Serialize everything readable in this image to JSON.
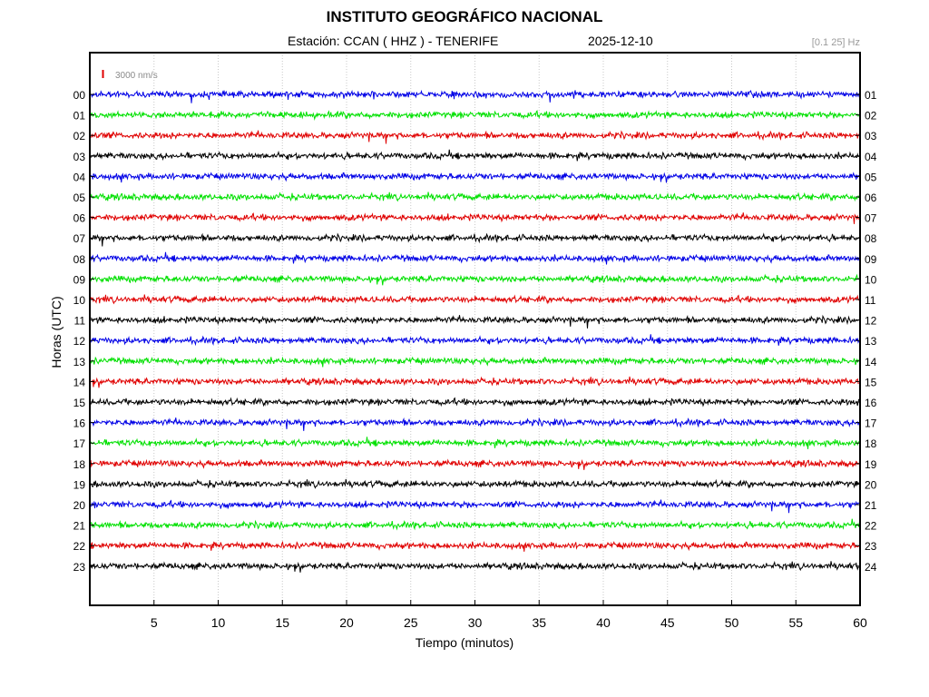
{
  "header": {
    "title": "INSTITUTO GEOGRÁFICO NACIONAL",
    "station_text": "Estación:  CCAN ( HHZ ) - TENERIFE",
    "date": "2025-12-10",
    "filter_band": "[0.1 25] Hz"
  },
  "chart_data": {
    "type": "line",
    "ylabel": "Horas (UTC)",
    "xlabel": "Tiempo (minutos)",
    "xlim": [
      0,
      60
    ],
    "x_ticks": [
      5,
      10,
      15,
      20,
      25,
      30,
      35,
      40,
      45,
      50,
      55,
      60
    ],
    "left_hour_labels": [
      "00",
      "01",
      "02",
      "03",
      "04",
      "05",
      "06",
      "07",
      "08",
      "09",
      "10",
      "11",
      "12",
      "13",
      "14",
      "15",
      "16",
      "17",
      "18",
      "19",
      "20",
      "21",
      "22",
      "23"
    ],
    "right_hour_labels": [
      "01",
      "02",
      "03",
      "04",
      "05",
      "06",
      "07",
      "08",
      "09",
      "10",
      "11",
      "12",
      "13",
      "14",
      "15",
      "16",
      "17",
      "18",
      "19",
      "20",
      "21",
      "22",
      "23",
      "24"
    ],
    "scale_bar_label": "3000 nm/s",
    "scale_bar_color": "#e00000",
    "grid": "vertical-dotted",
    "trace_color_cycle": [
      "#0000e6",
      "#00e000",
      "#e00000",
      "#000000"
    ]
  }
}
